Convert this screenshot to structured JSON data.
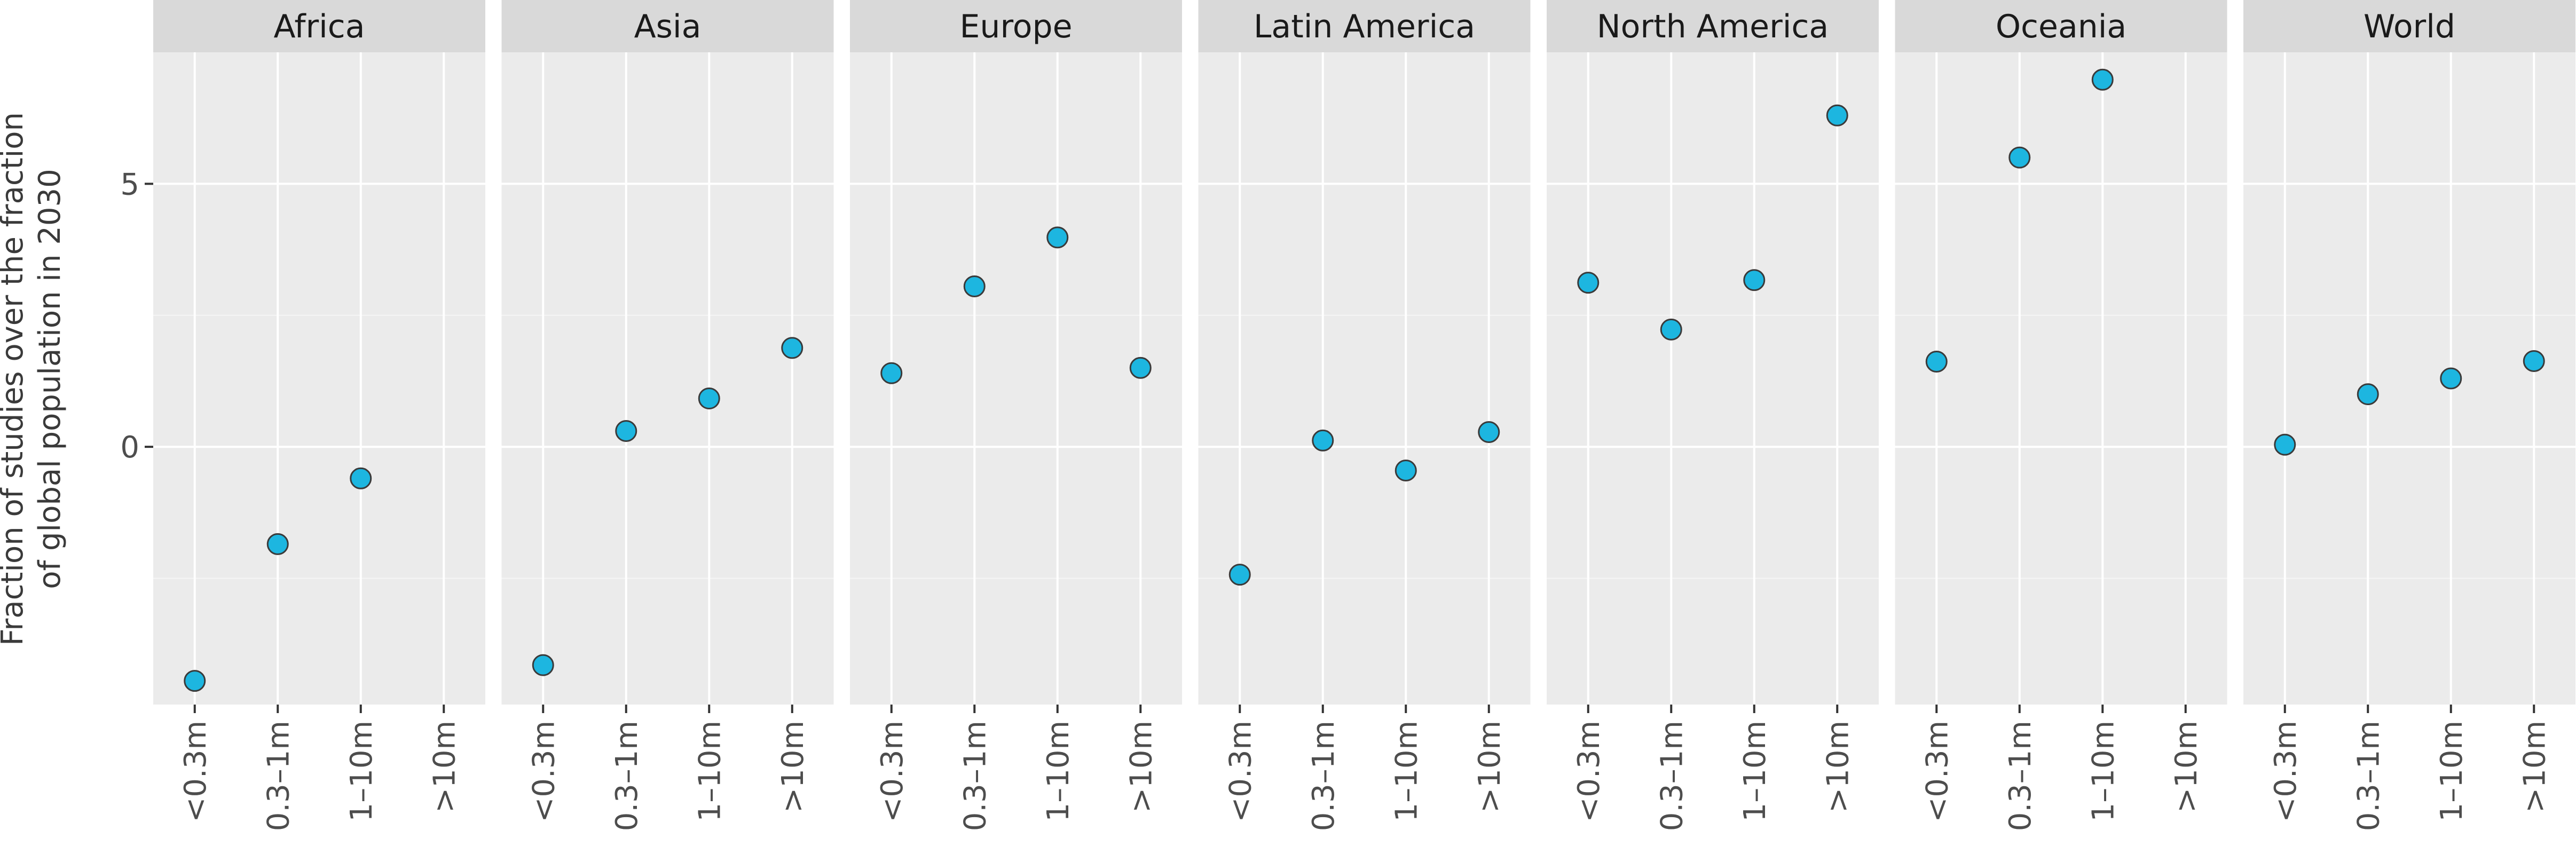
{
  "chart_data": {
    "type": "scatter",
    "ylabel_lines": [
      "Fraction of studies over the fraction",
      "of global population in 2030"
    ],
    "xlabel": "",
    "categories": [
      "<0.3m",
      "0.3–1m",
      "1–10m",
      ">10m"
    ],
    "y_ticks": [
      0,
      5
    ],
    "ylim": [
      -4.9,
      7.5
    ],
    "grid": true,
    "point_color": "#1DB6E0",
    "panels": [
      {
        "name": "Africa",
        "values": [
          -4.45,
          -1.85,
          -0.6,
          null
        ]
      },
      {
        "name": "Asia",
        "values": [
          -4.15,
          0.3,
          0.92,
          1.88
        ]
      },
      {
        "name": "Europe",
        "values": [
          1.4,
          3.05,
          3.98,
          1.5
        ]
      },
      {
        "name": "Latin America",
        "values": [
          -2.43,
          0.12,
          -0.45,
          0.28
        ]
      },
      {
        "name": "North America",
        "values": [
          3.12,
          2.23,
          3.17,
          6.3
        ]
      },
      {
        "name": "Oceania",
        "values": [
          1.62,
          5.5,
          6.98,
          null
        ]
      },
      {
        "name": "World",
        "values": [
          0.04,
          1.0,
          1.3,
          1.63
        ]
      }
    ]
  }
}
